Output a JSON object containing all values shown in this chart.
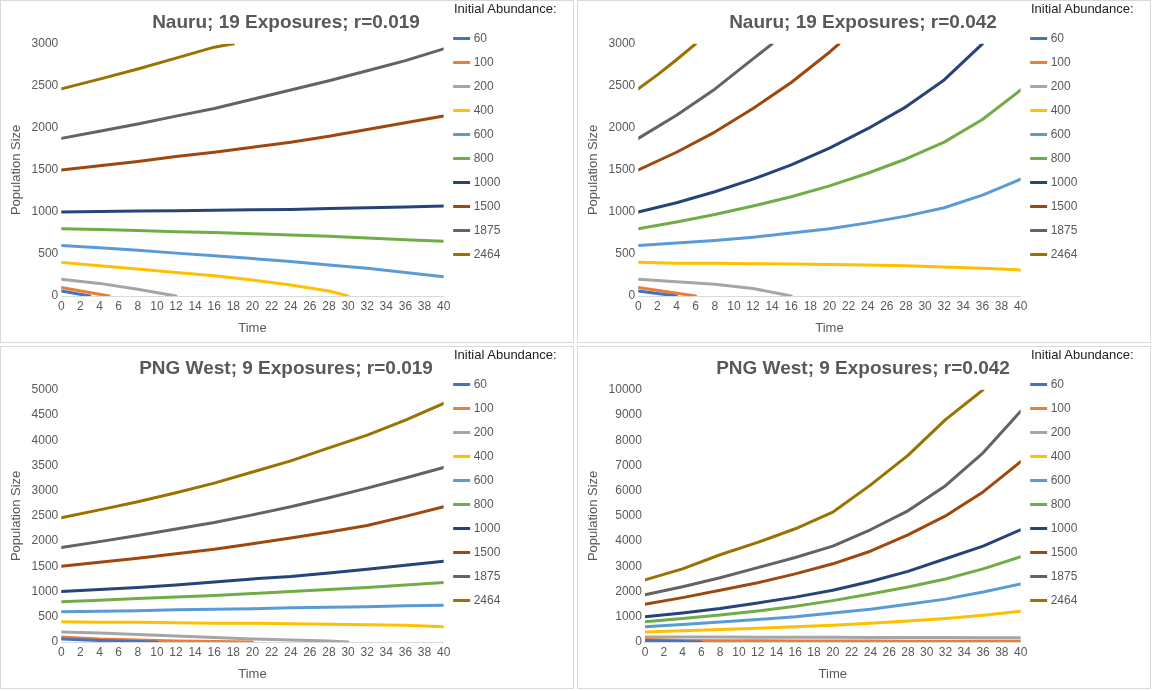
{
  "chart_data": [
    {
      "type": "line",
      "title": "Nauru; 19 Exposures; r=0.019",
      "xlabel": "Time",
      "ylabel": "Population Size",
      "legend_title": "Initial Abundance:",
      "legend": "right",
      "grid": false,
      "marker": "none",
      "line_style": "solid",
      "x": [
        0,
        4,
        8,
        12,
        16,
        20,
        24,
        28,
        32,
        36,
        40
      ],
      "xlim": [
        0,
        40
      ],
      "xticks": [
        0,
        2,
        4,
        6,
        8,
        10,
        12,
        14,
        16,
        18,
        20,
        22,
        24,
        26,
        28,
        30,
        32,
        34,
        36,
        38,
        40
      ],
      "ylim": [
        0,
        3000
      ],
      "yticks": [
        0,
        500,
        1000,
        1500,
        2000,
        2500,
        3000
      ],
      "series": [
        {
          "name": "60",
          "color": "#4472c4",
          "x": [
            0,
            3
          ],
          "values": [
            60,
            0
          ]
        },
        {
          "name": "100",
          "color": "#ed7d31",
          "x": [
            0,
            5
          ],
          "values": [
            100,
            0
          ]
        },
        {
          "name": "200",
          "color": "#a5a5a5",
          "x": [
            0,
            4,
            8,
            12
          ],
          "values": [
            200,
            150,
            80,
            0
          ]
        },
        {
          "name": "400",
          "color": "#ffc000",
          "x": [
            0,
            4,
            8,
            12,
            16,
            20,
            24,
            28,
            30
          ],
          "values": [
            400,
            360,
            320,
            280,
            240,
            190,
            130,
            60,
            0
          ]
        },
        {
          "name": "600",
          "color": "#5b9bd5",
          "values": [
            600,
            575,
            545,
            510,
            480,
            445,
            410,
            370,
            330,
            280,
            230
          ]
        },
        {
          "name": "800",
          "color": "#70ad47",
          "values": [
            800,
            790,
            780,
            765,
            755,
            740,
            725,
            710,
            690,
            670,
            650
          ]
        },
        {
          "name": "1000",
          "color": "#264478",
          "values": [
            1000,
            1005,
            1010,
            1015,
            1020,
            1025,
            1030,
            1040,
            1050,
            1060,
            1070
          ]
        },
        {
          "name": "1500",
          "color": "#9e480e",
          "values": [
            1500,
            1550,
            1600,
            1660,
            1710,
            1770,
            1830,
            1900,
            1980,
            2060,
            2140
          ]
        },
        {
          "name": "1875",
          "color": "#636363",
          "values": [
            1875,
            1960,
            2045,
            2140,
            2230,
            2340,
            2450,
            2560,
            2680,
            2800,
            2940
          ]
        },
        {
          "name": "2464",
          "color": "#997300",
          "x": [
            0,
            4,
            8,
            12,
            16,
            18
          ],
          "values": [
            2464,
            2580,
            2700,
            2830,
            2960,
            3000
          ]
        }
      ]
    },
    {
      "type": "line",
      "title": "Nauru; 19 Exposures; r=0.042",
      "xlabel": "Time",
      "ylabel": "Population Size",
      "legend_title": "Initial Abundance:",
      "legend": "right",
      "grid": false,
      "marker": "none",
      "line_style": "solid",
      "x": [
        0,
        4,
        8,
        12,
        16,
        20,
        24,
        28,
        32,
        36,
        40
      ],
      "xlim": [
        0,
        40
      ],
      "xticks": [
        0,
        2,
        4,
        6,
        8,
        10,
        12,
        14,
        16,
        18,
        20,
        22,
        24,
        26,
        28,
        30,
        32,
        34,
        36,
        38,
        40
      ],
      "ylim": [
        0,
        3000
      ],
      "yticks": [
        0,
        500,
        1000,
        1500,
        2000,
        2500,
        3000
      ],
      "series": [
        {
          "name": "60",
          "color": "#4472c4",
          "x": [
            0,
            4
          ],
          "values": [
            60,
            0
          ]
        },
        {
          "name": "100",
          "color": "#ed7d31",
          "x": [
            0,
            6
          ],
          "values": [
            100,
            0
          ]
        },
        {
          "name": "200",
          "color": "#a5a5a5",
          "x": [
            0,
            4,
            8,
            12,
            16
          ],
          "values": [
            200,
            170,
            140,
            90,
            0
          ]
        },
        {
          "name": "400",
          "color": "#ffc000",
          "values": [
            400,
            390,
            390,
            385,
            380,
            375,
            370,
            360,
            345,
            330,
            310
          ]
        },
        {
          "name": "600",
          "color": "#5b9bd5",
          "values": [
            600,
            630,
            660,
            700,
            750,
            800,
            870,
            950,
            1050,
            1200,
            1390
          ]
        },
        {
          "name": "800",
          "color": "#70ad47",
          "values": [
            800,
            880,
            970,
            1070,
            1180,
            1310,
            1460,
            1630,
            1830,
            2100,
            2450
          ]
        },
        {
          "name": "1000",
          "color": "#264478",
          "x": [
            0,
            4,
            8,
            12,
            16,
            20,
            24,
            28,
            32,
            36
          ],
          "values": [
            1000,
            1110,
            1240,
            1390,
            1560,
            1760,
            1990,
            2250,
            2570,
            3000
          ]
        },
        {
          "name": "1500",
          "color": "#9e480e",
          "x": [
            0,
            4,
            8,
            12,
            16,
            20,
            21
          ],
          "values": [
            1500,
            1710,
            1950,
            2230,
            2540,
            2900,
            3000
          ]
        },
        {
          "name": "1875",
          "color": "#636363",
          "x": [
            0,
            4,
            8,
            12,
            14
          ],
          "values": [
            1875,
            2150,
            2460,
            2820,
            3000
          ]
        },
        {
          "name": "2464",
          "color": "#997300",
          "x": [
            0,
            2,
            4,
            6
          ],
          "values": [
            2464,
            2630,
            2810,
            3000
          ]
        }
      ]
    },
    {
      "type": "line",
      "title": "PNG West; 9 Exposures; r=0.019",
      "xlabel": "Time",
      "ylabel": "Population Size",
      "legend_title": "Initial Abundance:",
      "legend": "right",
      "grid": false,
      "marker": "none",
      "line_style": "solid",
      "x": [
        0,
        4,
        8,
        12,
        16,
        20,
        24,
        28,
        32,
        36,
        40
      ],
      "xlim": [
        0,
        40
      ],
      "xticks": [
        0,
        2,
        4,
        6,
        8,
        10,
        12,
        14,
        16,
        18,
        20,
        22,
        24,
        26,
        28,
        30,
        32,
        34,
        36,
        38,
        40
      ],
      "ylim": [
        0,
        5000
      ],
      "yticks": [
        0,
        500,
        1000,
        1500,
        2000,
        2500,
        3000,
        3500,
        4000,
        4500,
        5000
      ],
      "series": [
        {
          "name": "60",
          "color": "#4472c4",
          "x": [
            0,
            4,
            8,
            10
          ],
          "values": [
            60,
            30,
            10,
            0
          ]
        },
        {
          "name": "100",
          "color": "#ed7d31",
          "x": [
            0,
            4,
            8,
            12,
            16,
            20
          ],
          "values": [
            100,
            60,
            40,
            20,
            10,
            0
          ]
        },
        {
          "name": "200",
          "color": "#a5a5a5",
          "x": [
            0,
            4,
            8,
            12,
            16,
            20,
            24,
            28,
            30
          ],
          "values": [
            200,
            180,
            150,
            120,
            90,
            60,
            40,
            20,
            0
          ]
        },
        {
          "name": "400",
          "color": "#ffc000",
          "values": [
            400,
            390,
            390,
            380,
            370,
            370,
            360,
            350,
            340,
            330,
            300
          ]
        },
        {
          "name": "600",
          "color": "#5b9bd5",
          "values": [
            600,
            610,
            620,
            640,
            650,
            660,
            680,
            690,
            700,
            720,
            730
          ]
        },
        {
          "name": "800",
          "color": "#70ad47",
          "values": [
            800,
            830,
            860,
            890,
            920,
            960,
            1000,
            1040,
            1080,
            1130,
            1180
          ]
        },
        {
          "name": "1000",
          "color": "#264478",
          "values": [
            1000,
            1040,
            1080,
            1130,
            1190,
            1250,
            1300,
            1370,
            1440,
            1520,
            1600
          ]
        },
        {
          "name": "1500",
          "color": "#9e480e",
          "values": [
            1500,
            1580,
            1660,
            1750,
            1840,
            1950,
            2060,
            2180,
            2310,
            2490,
            2680
          ]
        },
        {
          "name": "1875",
          "color": "#636363",
          "values": [
            1875,
            1990,
            2110,
            2240,
            2370,
            2520,
            2680,
            2860,
            3050,
            3250,
            3460
          ]
        },
        {
          "name": "2464",
          "color": "#997300",
          "values": [
            2464,
            2620,
            2780,
            2960,
            3150,
            3370,
            3590,
            3850,
            4100,
            4400,
            4730
          ]
        }
      ]
    },
    {
      "type": "line",
      "title": "PNG West; 9 Exposures; r=0.042",
      "xlabel": "Time",
      "ylabel": "Population Size",
      "legend_title": "Initial Abundance:",
      "legend": "right",
      "grid": false,
      "marker": "none",
      "line_style": "solid",
      "x": [
        0,
        4,
        8,
        12,
        16,
        20,
        24,
        28,
        32,
        36,
        40
      ],
      "xlim": [
        0,
        40
      ],
      "xticks": [
        0,
        2,
        4,
        6,
        8,
        10,
        12,
        14,
        16,
        18,
        20,
        22,
        24,
        26,
        28,
        30,
        32,
        34,
        36,
        38,
        40
      ],
      "ylim": [
        0,
        10000
      ],
      "yticks": [
        0,
        1000,
        2000,
        3000,
        4000,
        5000,
        6000,
        7000,
        8000,
        9000,
        10000
      ],
      "series": [
        {
          "name": "60",
          "color": "#4472c4",
          "x": [
            0,
            4,
            6
          ],
          "values": [
            60,
            20,
            0
          ]
        },
        {
          "name": "100",
          "color": "#ed7d31",
          "values": [
            100,
            60,
            50,
            50,
            40,
            40,
            40,
            30,
            30,
            30,
            30
          ]
        },
        {
          "name": "200",
          "color": "#a5a5a5",
          "values": [
            200,
            200,
            200,
            190,
            190,
            190,
            180,
            180,
            180,
            170,
            170
          ]
        },
        {
          "name": "400",
          "color": "#ffc000",
          "values": [
            400,
            450,
            500,
            550,
            600,
            660,
            740,
            830,
            930,
            1060,
            1220
          ]
        },
        {
          "name": "600",
          "color": "#5b9bd5",
          "values": [
            600,
            690,
            790,
            890,
            1000,
            1150,
            1300,
            1500,
            1700,
            1980,
            2300
          ]
        },
        {
          "name": "800",
          "color": "#70ad47",
          "values": [
            800,
            930,
            1070,
            1230,
            1420,
            1640,
            1900,
            2180,
            2500,
            2900,
            3380
          ]
        },
        {
          "name": "1000",
          "color": "#264478",
          "values": [
            1000,
            1150,
            1330,
            1550,
            1780,
            2050,
            2400,
            2800,
            3300,
            3800,
            4450
          ]
        },
        {
          "name": "1500",
          "color": "#9e480e",
          "values": [
            1500,
            1760,
            2050,
            2350,
            2700,
            3100,
            3600,
            4250,
            5000,
            5950,
            7150
          ]
        },
        {
          "name": "1875",
          "color": "#636363",
          "values": [
            1875,
            2190,
            2550,
            2950,
            3350,
            3800,
            4450,
            5200,
            6200,
            7500,
            9150
          ]
        },
        {
          "name": "2464",
          "color": "#997300",
          "x": [
            0,
            4,
            8,
            12,
            16,
            20,
            24,
            28,
            32,
            36
          ],
          "values": [
            2464,
            2900,
            3460,
            3950,
            4490,
            5150,
            6220,
            7400,
            8820,
            10000
          ]
        }
      ]
    }
  ]
}
